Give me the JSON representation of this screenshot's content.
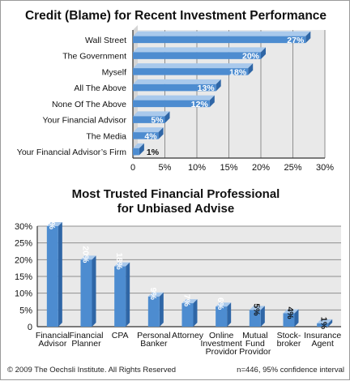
{
  "chart_data": [
    {
      "type": "bar",
      "orientation": "horizontal",
      "title": "Credit (Blame) for Recent Investment Performance",
      "categories": [
        "Wall Street",
        "The Government",
        "Myself",
        "All The Above",
        "None Of The Above",
        "Your Financial Advisor",
        "The Media",
        "Your Financial Advisor’s Firm"
      ],
      "values": [
        27,
        20,
        18,
        13,
        12,
        5,
        4,
        1
      ],
      "value_labels": [
        "27%",
        "20%",
        "18%",
        "13%",
        "12%",
        "5%",
        "4%",
        "1%"
      ],
      "xlim": [
        0,
        30
      ],
      "ticks": [
        "0",
        "5%",
        "10%",
        "15%",
        "20%",
        "25%",
        "30%"
      ],
      "grid": true
    },
    {
      "type": "bar",
      "orientation": "vertical",
      "title_lines": [
        "Most Trusted Financial Professional",
        "for Unbiased Advise"
      ],
      "categories": [
        [
          "Financial",
          "Advisor"
        ],
        [
          "Financial",
          "Planner"
        ],
        [
          "CPA"
        ],
        [
          "Personal",
          "Banker"
        ],
        [
          "Attorney"
        ],
        [
          "Online",
          "Investment",
          "Providor"
        ],
        [
          "Mutual",
          "Fund",
          "Providor"
        ],
        [
          "Stock-",
          "broker"
        ],
        [
          "Insurance",
          "Agent"
        ]
      ],
      "values": [
        30,
        20,
        18,
        9,
        7,
        6,
        5,
        4,
        1
      ],
      "value_labels": [
        "30%",
        "20%",
        "18%",
        "9%",
        "7%",
        "6%",
        "5%",
        "4%",
        "1%"
      ],
      "ylim": [
        0,
        30
      ],
      "ticks": [
        "0",
        "5%",
        "10%",
        "15%",
        "20%",
        "25%",
        "30%"
      ],
      "grid": true
    }
  ],
  "colors": {
    "bar_front": "#4d8cd0",
    "bar_side": "#2f66a6",
    "bar_top": "#a9c9ec",
    "grid": "#8e8e8e",
    "plot_bg": "#e9e9e9"
  },
  "footer": {
    "copyright": "© 2009 The Oechsli Institute. All Rights Reserved",
    "note": "n=446, 95% confidence interval"
  }
}
